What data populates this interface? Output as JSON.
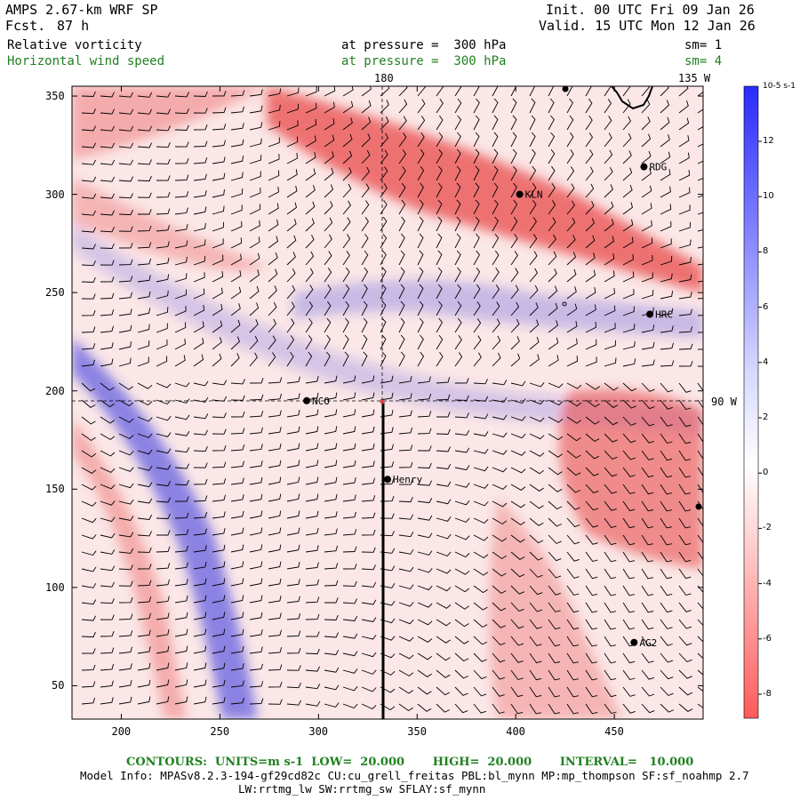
{
  "header": {
    "model": "AMPS 2.67-km WRF SP",
    "fcst_label": "Fcst.",
    "fcst_value": "87 h",
    "init": "Init. 00 UTC Fri 09 Jan 26",
    "valid": "Valid. 15 UTC Mon 12 Jan 26",
    "field1": "Relative vorticity",
    "field1_level": "at pressure =  300 hPa",
    "field1_sm": "sm= 1",
    "field2": "Horizontal wind speed",
    "field2_level": "at pressure =  300 hPa",
    "field2_sm": "sm= 4"
  },
  "map": {
    "x_ticks": [
      200,
      250,
      300,
      350,
      400,
      450
    ],
    "y_ticks": [
      50,
      100,
      150,
      200,
      250,
      300,
      350
    ],
    "xlim": [
      175,
      495
    ],
    "ylim": [
      33,
      355
    ],
    "meridian_180": "180",
    "meridian_135w": "135 W",
    "parallel_90w": "90 W",
    "stations": [
      {
        "name": "KLN",
        "x": 402,
        "y": 300
      },
      {
        "name": "RDG",
        "x": 465,
        "y": 314
      },
      {
        "name": "HRC",
        "x": 468,
        "y": 239
      },
      {
        "name": "NCO",
        "x": 294,
        "y": 195
      },
      {
        "name": "Henry",
        "x": 335,
        "y": 155
      },
      {
        "name": "AG2",
        "x": 460,
        "y": 72
      }
    ],
    "colors": {
      "positive": "#e84040",
      "negative": "#3030e0",
      "green": "#208020"
    }
  },
  "colorbar": {
    "unit": "10-5 s-1",
    "labels": [
      "12",
      "10",
      "8",
      "6",
      "4",
      "2",
      "0",
      "-2",
      "-4",
      "-6",
      "-8"
    ]
  },
  "footer": {
    "contours": "CONTOURS:  UNITS=m s-1  LOW=  20.000       HIGH=  20.000       INTERVAL=   10.000",
    "model_info": "Model Info: MPASv8.2.3-194-gf29cd82c CU:cu_grell_freitas PBL:bl_mynn MP:mp_thompson SF:sf_noahmp 2.7",
    "model_info2": "LW:rrtmg_lw SW:rrtmg_sw SFLAY:sf_mynn"
  }
}
